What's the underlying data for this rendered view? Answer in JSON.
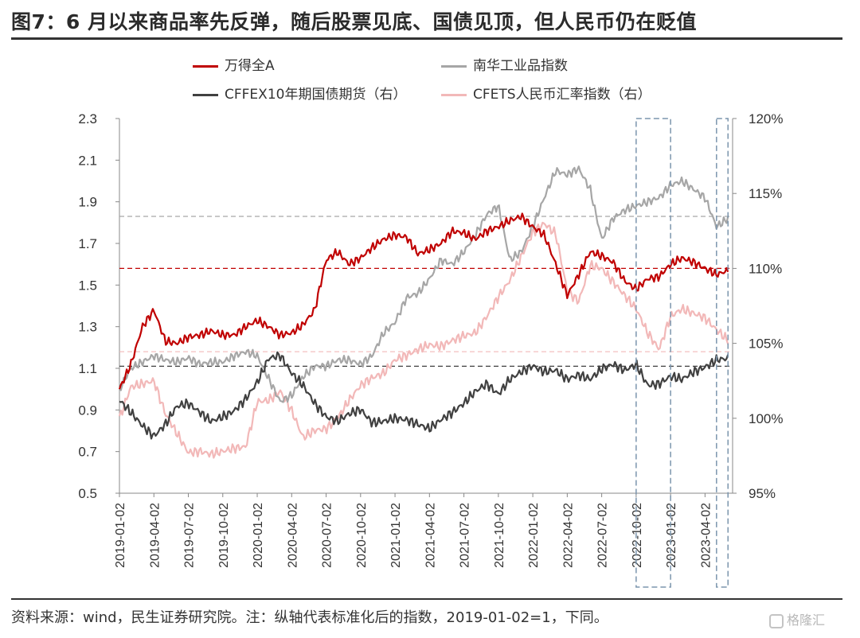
{
  "title": "图7：6 月以来商品率先反弹，随后股票见底、国债见顶，但人民币仍在贬值",
  "source": "资料来源：wind，民生证券研究院。注：纵轴代表标准化后的指数，2019-01-02=1，下同。",
  "watermark": "格隆汇",
  "legend": {
    "s1": "万得全A",
    "s2": "南华工业品指数",
    "s3": "CFFEX10年期国债期货（右）",
    "s4": "CFETS人民币汇率指数（右）"
  },
  "colors": {
    "wind_a": "#c00000",
    "nanhua": "#a6a6a6",
    "bond": "#404040",
    "cfets": "#f2b8b8",
    "box": "#7b95ad"
  },
  "chart_data": {
    "type": "line",
    "x_ticks": [
      "2019-01-02",
      "2019-04-02",
      "2019-07-02",
      "2019-10-02",
      "2020-01-02",
      "2020-04-02",
      "2020-07-02",
      "2020-10-02",
      "2021-01-02",
      "2021-04-02",
      "2021-07-02",
      "2021-10-02",
      "2022-01-02",
      "2022-04-02",
      "2022-07-02",
      "2022-10-02",
      "2023-01-02",
      "2023-04-02"
    ],
    "y_left": {
      "ticks": [
        "0.5",
        "0.7",
        "0.9",
        "1.1",
        "1.3",
        "1.5",
        "1.7",
        "1.9",
        "2.1",
        "2.3"
      ],
      "range": [
        0.5,
        2.3
      ]
    },
    "y_right": {
      "ticks": [
        "95%",
        "100%",
        "105%",
        "110%",
        "115%",
        "120%"
      ],
      "range": [
        95,
        120
      ]
    },
    "grid": false,
    "legend_position": "top",
    "x": [
      "2019-01",
      "2019-02",
      "2019-03",
      "2019-04",
      "2019-05",
      "2019-06",
      "2019-07",
      "2019-08",
      "2019-09",
      "2019-10",
      "2019-11",
      "2019-12",
      "2020-01",
      "2020-02",
      "2020-03",
      "2020-04",
      "2020-05",
      "2020-06",
      "2020-07",
      "2020-08",
      "2020-09",
      "2020-10",
      "2020-11",
      "2020-12",
      "2021-01",
      "2021-02",
      "2021-03",
      "2021-04",
      "2021-05",
      "2021-06",
      "2021-07",
      "2021-08",
      "2021-09",
      "2021-10",
      "2021-11",
      "2021-12",
      "2022-01",
      "2022-02",
      "2022-03",
      "2022-04",
      "2022-05",
      "2022-06",
      "2022-07",
      "2022-08",
      "2022-09",
      "2022-10",
      "2022-11",
      "2022-12",
      "2023-01",
      "2023-02",
      "2023-03",
      "2023-04",
      "2023-05",
      "2023-06"
    ],
    "series": [
      {
        "name": "万得全A",
        "axis": "left",
        "color_key": "wind_a",
        "values": [
          1.0,
          1.12,
          1.3,
          1.38,
          1.23,
          1.22,
          1.25,
          1.26,
          1.28,
          1.26,
          1.26,
          1.3,
          1.33,
          1.3,
          1.26,
          1.27,
          1.31,
          1.38,
          1.62,
          1.66,
          1.6,
          1.63,
          1.68,
          1.72,
          1.74,
          1.73,
          1.65,
          1.67,
          1.7,
          1.76,
          1.75,
          1.72,
          1.76,
          1.78,
          1.81,
          1.83,
          1.78,
          1.74,
          1.6,
          1.45,
          1.55,
          1.66,
          1.64,
          1.61,
          1.52,
          1.48,
          1.53,
          1.54,
          1.6,
          1.63,
          1.61,
          1.58,
          1.55,
          1.57
        ]
      },
      {
        "name": "南华工业品指数",
        "axis": "left",
        "color_key": "nanhua",
        "values": [
          1.0,
          1.1,
          1.13,
          1.16,
          1.14,
          1.13,
          1.15,
          1.12,
          1.13,
          1.13,
          1.16,
          1.18,
          1.16,
          1.05,
          0.94,
          0.97,
          1.06,
          1.11,
          1.11,
          1.14,
          1.14,
          1.12,
          1.16,
          1.27,
          1.32,
          1.44,
          1.46,
          1.53,
          1.62,
          1.6,
          1.66,
          1.74,
          1.84,
          1.88,
          1.62,
          1.66,
          1.78,
          1.92,
          2.05,
          2.03,
          2.06,
          1.96,
          1.72,
          1.82,
          1.86,
          1.88,
          1.9,
          1.92,
          1.98,
          2.0,
          1.96,
          1.92,
          1.78,
          1.82
        ]
      },
      {
        "name": "CFFEX10年期国债期货（右）",
        "axis": "right",
        "values_unit": "%",
        "color_key": "bond",
        "values": [
          101.2,
          100.4,
          99.5,
          98.8,
          99.6,
          100.8,
          101.0,
          100.4,
          99.8,
          100.1,
          100.5,
          101.3,
          102.4,
          104.0,
          104.2,
          103.0,
          102.2,
          101.0,
          100.1,
          99.8,
          100.3,
          100.6,
          99.7,
          99.8,
          100.0,
          99.9,
          99.6,
          99.3,
          99.9,
          100.4,
          101.0,
          101.8,
          102.3,
          101.6,
          102.6,
          103.1,
          103.5,
          103.1,
          103.2,
          102.6,
          102.9,
          102.6,
          103.3,
          103.6,
          103.2,
          103.6,
          102.2,
          102.3,
          102.8,
          102.6,
          103.1,
          103.4,
          103.9,
          104.0
        ]
      },
      {
        "name": "CFETS人民币汇率指数（右）",
        "axis": "right",
        "values_unit": "%",
        "color_key": "cfets",
        "values": [
          100.0,
          102.1,
          102.3,
          102.5,
          100.3,
          99.0,
          97.7,
          97.8,
          97.6,
          97.8,
          98.0,
          98.1,
          101.1,
          101.2,
          101.8,
          100.5,
          98.7,
          99.2,
          99.3,
          100.0,
          101.2,
          102.2,
          102.7,
          103.0,
          103.9,
          104.2,
          104.6,
          104.9,
          104.8,
          105.2,
          105.5,
          105.7,
          106.8,
          108.1,
          109.2,
          110.8,
          112.4,
          113.0,
          112.3,
          108.5,
          107.8,
          110.2,
          110.0,
          109.1,
          108.2,
          107.3,
          105.7,
          104.6,
          106.8,
          107.3,
          107.0,
          106.7,
          105.9,
          105.2
        ]
      }
    ],
    "reference_lines": [
      {
        "axis": "left",
        "value": 1.83,
        "color_key": "nanhua",
        "style": "dashed"
      },
      {
        "axis": "left",
        "value": 1.58,
        "color_key": "wind_a",
        "style": "dashed"
      },
      {
        "axis": "left",
        "value": 1.11,
        "color_key": "bond",
        "style": "dashed"
      },
      {
        "axis": "left",
        "value": 1.18,
        "color_key": "cfets",
        "style": "dashed"
      }
    ],
    "highlight_boxes": [
      {
        "from": "2022-10",
        "to": "2023-01"
      },
      {
        "from": "2023-05",
        "to": "2023-06"
      }
    ]
  }
}
